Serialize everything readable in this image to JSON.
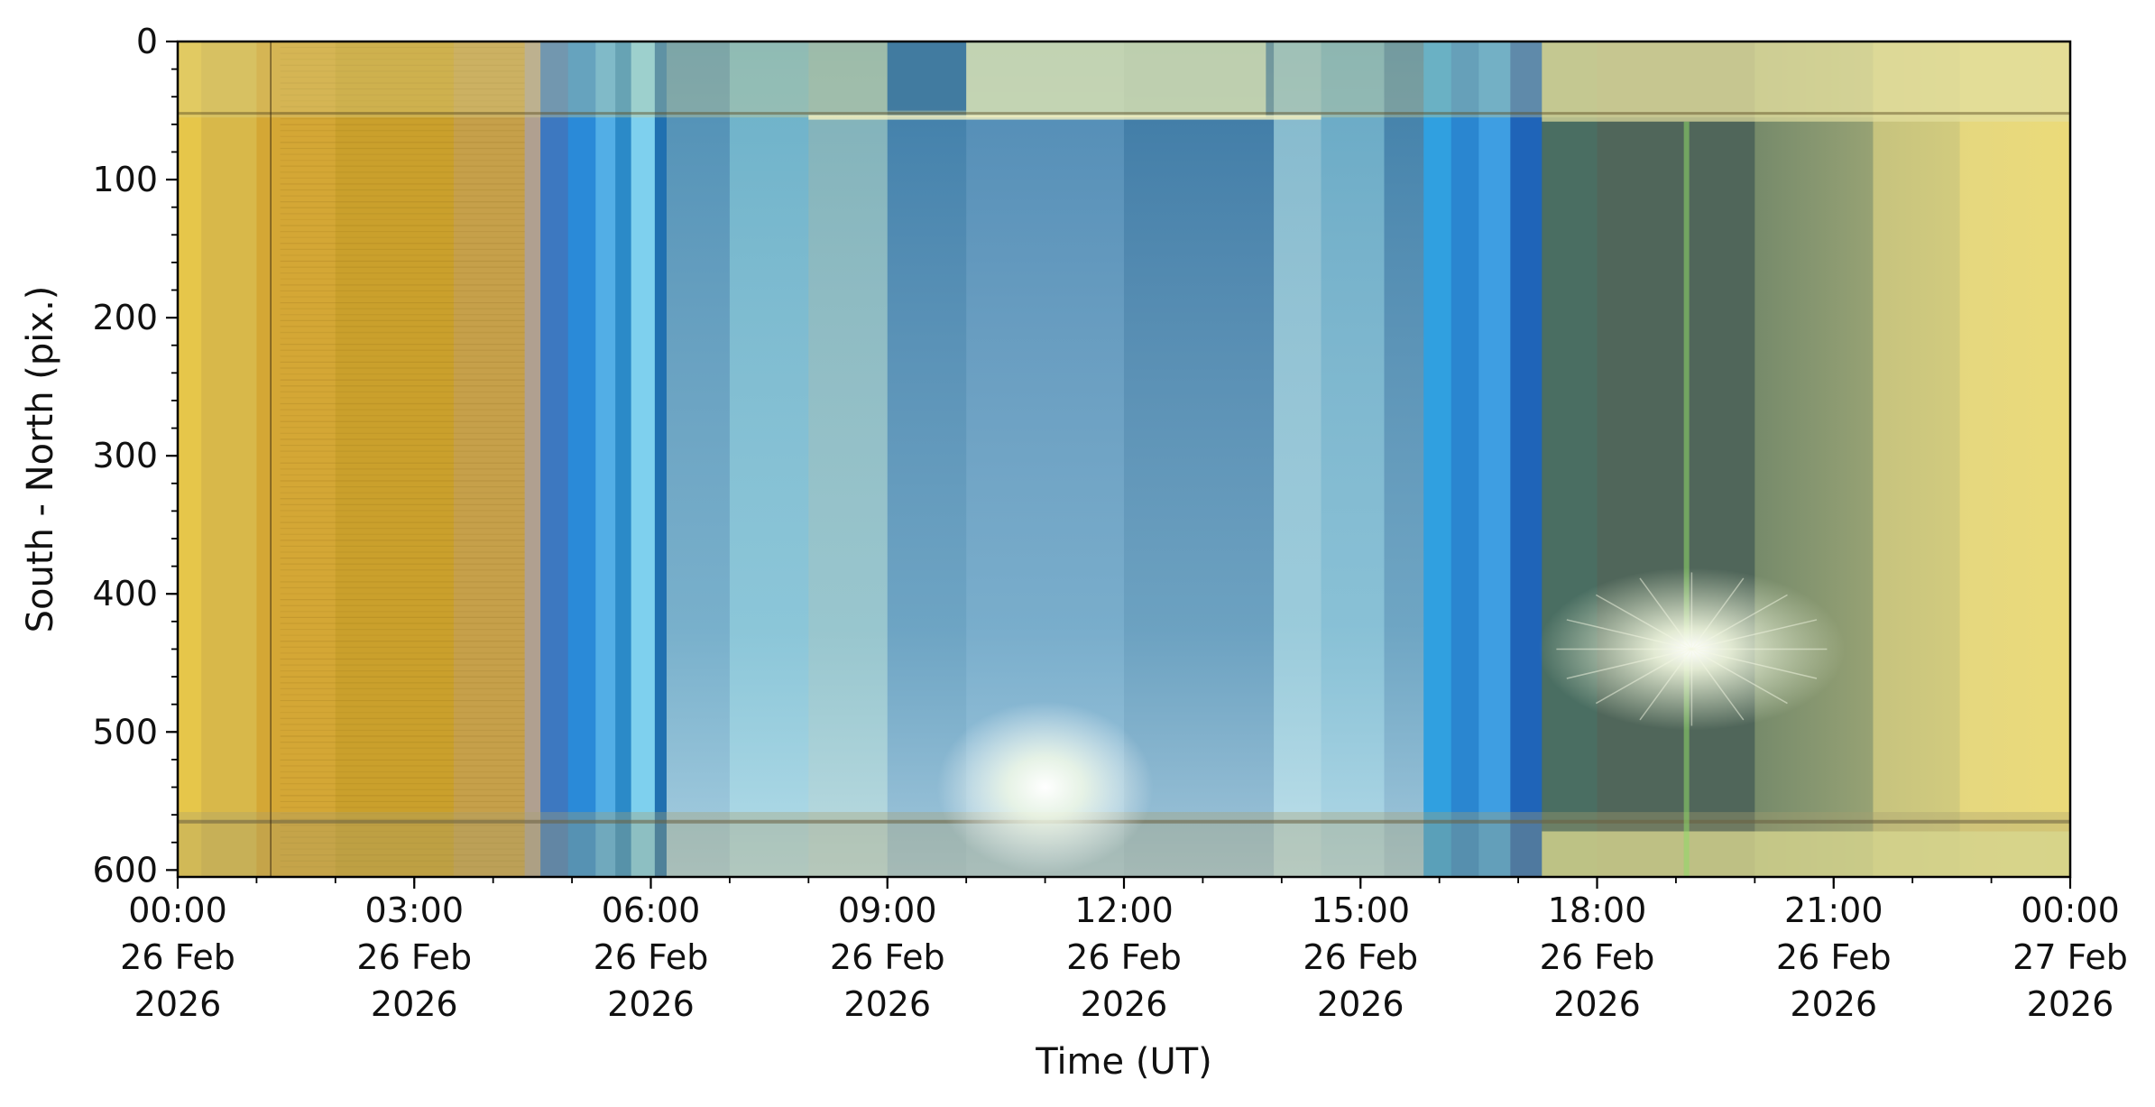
{
  "chart_data": {
    "type": "heatmap",
    "title": "",
    "xlabel": "Time (UT)",
    "ylabel": "South - North (pix.)",
    "ylim": [
      605,
      0
    ],
    "y_ticks": [
      0,
      100,
      200,
      300,
      400,
      500,
      600
    ],
    "xlim_hours": [
      0,
      24
    ],
    "x_ticks": [
      {
        "hour": 0,
        "lines": [
          "00:00",
          "26 Feb",
          "2026"
        ]
      },
      {
        "hour": 3,
        "lines": [
          "03:00",
          "26 Feb",
          "2026"
        ]
      },
      {
        "hour": 6,
        "lines": [
          "06:00",
          "26 Feb",
          "2026"
        ]
      },
      {
        "hour": 9,
        "lines": [
          "09:00",
          "26 Feb",
          "2026"
        ]
      },
      {
        "hour": 12,
        "lines": [
          "12:00",
          "26 Feb",
          "2026"
        ]
      },
      {
        "hour": 15,
        "lines": [
          "15:00",
          "26 Feb",
          "2026"
        ]
      },
      {
        "hour": 18,
        "lines": [
          "18:00",
          "26 Feb",
          "2026"
        ]
      },
      {
        "hour": 21,
        "lines": [
          "21:00",
          "26 Feb",
          "2026"
        ]
      },
      {
        "hour": 24,
        "lines": [
          "00:00",
          "27 Feb",
          "2026"
        ]
      }
    ],
    "x_minor_tick_step_hours": 1,
    "y_minor_tick_step": 20,
    "bands": [
      {
        "from": 0.0,
        "to": 0.3,
        "color": "#e6c64a"
      },
      {
        "from": 0.3,
        "to": 1.0,
        "color": "#d8b84a"
      },
      {
        "from": 1.0,
        "to": 2.0,
        "color": "#d4a735"
      },
      {
        "from": 2.0,
        "to": 3.5,
        "color": "#caa02c"
      },
      {
        "from": 3.5,
        "to": 4.4,
        "color": "#c6a04a"
      },
      {
        "from": 4.4,
        "to": 4.6,
        "color": "#b0a090"
      },
      {
        "from": 4.6,
        "to": 4.95,
        "color": "#3d78c0"
      },
      {
        "from": 4.95,
        "to": 5.3,
        "color": "#2a8ad8"
      },
      {
        "from": 5.3,
        "to": 5.55,
        "color": "#52aee6"
      },
      {
        "from": 5.55,
        "to": 5.75,
        "color": "#2b8ac8"
      },
      {
        "from": 5.75,
        "to": 6.05,
        "color": "#7ed0ee"
      },
      {
        "from": 6.05,
        "to": 6.2,
        "color": "#2070b0"
      },
      {
        "from": 6.2,
        "to": 7.0,
        "color": "#4d8eb4"
      },
      {
        "from": 7.0,
        "to": 8.0,
        "color": "#6ab0c8"
      },
      {
        "from": 8.0,
        "to": 9.0,
        "color": "#7eb0b8"
      },
      {
        "from": 9.0,
        "to": 10.0,
        "color": "#3c7ca8"
      },
      {
        "from": 10.0,
        "to": 12.0,
        "color": "#4e8ab4"
      },
      {
        "from": 12.0,
        "to": 13.9,
        "color": "#3a78a4"
      },
      {
        "from": 13.9,
        "to": 14.5,
        "color": "#82b8cc"
      },
      {
        "from": 14.5,
        "to": 15.3,
        "color": "#66a8c4"
      },
      {
        "from": 15.3,
        "to": 15.8,
        "color": "#3e7ea8"
      },
      {
        "from": 15.8,
        "to": 16.15,
        "color": "#30a0e0"
      },
      {
        "from": 16.15,
        "to": 16.5,
        "color": "#2a86d0"
      },
      {
        "from": 16.5,
        "to": 16.9,
        "color": "#3e9ee2"
      },
      {
        "from": 16.9,
        "to": 17.3,
        "color": "#1f64b8"
      },
      {
        "from": 17.3,
        "to": 18.0,
        "color": "#4a6e62"
      },
      {
        "from": 18.0,
        "to": 20.0,
        "color": "#50665a"
      },
      {
        "from": 20.0,
        "to": 21.5,
        "color": "#768a6a"
      },
      {
        "from": 21.5,
        "to": 22.6,
        "color": "#b8b878"
      },
      {
        "from": 22.6,
        "to": 24.0,
        "color": "#ddd07a"
      }
    ]
  }
}
